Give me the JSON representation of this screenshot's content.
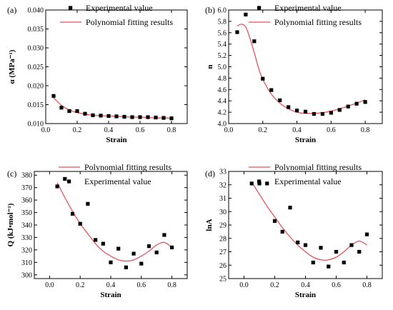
{
  "chart_data": [
    {
      "type": "scatter",
      "panel_label": "(a)",
      "xlabel": "Strain",
      "ylabel": "α (MPa⁻¹)",
      "xlim": [
        0.0,
        0.9
      ],
      "ylim": [
        0.01,
        0.04
      ],
      "xticks": [
        0.0,
        0.2,
        0.4,
        0.6,
        0.8
      ],
      "yticks": [
        0.01,
        0.015,
        0.02,
        0.025,
        0.03,
        0.035,
        0.04
      ],
      "xtick_labels": [
        "0.0",
        "0.2",
        "0.4",
        "0.6",
        "0.8"
      ],
      "ytick_labels": [
        "0.010",
        "0.015",
        "0.020",
        "0.025",
        "0.030",
        "0.035",
        "0.040"
      ],
      "legend": {
        "order": [
          "points",
          "fit"
        ],
        "entries": {
          "points": "Experimental value",
          "fit": "Polynomial fitting results"
        }
      },
      "points": {
        "x": [
          0.05,
          0.1,
          0.15,
          0.2,
          0.25,
          0.3,
          0.35,
          0.4,
          0.45,
          0.5,
          0.55,
          0.6,
          0.65,
          0.7,
          0.75,
          0.8
        ],
        "y": [
          0.0173,
          0.0142,
          0.0133,
          0.0133,
          0.0126,
          0.0122,
          0.0121,
          0.012,
          0.0119,
          0.0118,
          0.0117,
          0.0117,
          0.0117,
          0.0116,
          0.0115,
          0.0114
        ]
      },
      "fit": {
        "x": [
          0.05,
          0.1,
          0.15,
          0.2,
          0.25,
          0.3,
          0.35,
          0.4,
          0.45,
          0.5,
          0.55,
          0.6,
          0.65,
          0.7,
          0.75,
          0.8
        ],
        "y": [
          0.0168,
          0.0148,
          0.0136,
          0.0129,
          0.0125,
          0.0122,
          0.0121,
          0.012,
          0.0119,
          0.0118,
          0.0117,
          0.0117,
          0.0116,
          0.0115,
          0.0115,
          0.0114
        ]
      }
    },
    {
      "type": "scatter",
      "panel_label": "(b)",
      "xlabel": "Strain",
      "ylabel": "n",
      "xlim": [
        0.0,
        0.9
      ],
      "ylim": [
        4.0,
        6.0
      ],
      "xticks": [
        0.0,
        0.2,
        0.4,
        0.6,
        0.8
      ],
      "yticks": [
        4.0,
        4.2,
        4.4,
        4.6,
        4.8,
        5.0,
        5.2,
        5.4,
        5.6,
        5.8,
        6.0
      ],
      "xtick_labels": [
        "0.0",
        "0.2",
        "0.4",
        "0.6",
        "0.8"
      ],
      "ytick_labels": [
        "4.0",
        "4.2",
        "4.4",
        "4.6",
        "4.8",
        "5.0",
        "5.2",
        "5.4",
        "5.6",
        "5.8",
        "6.0"
      ],
      "legend": {
        "order": [
          "points",
          "fit"
        ],
        "entries": {
          "points": "Experimental value",
          "fit": "Polynomial fitting results"
        }
      },
      "points": {
        "x": [
          0.05,
          0.1,
          0.15,
          0.2,
          0.25,
          0.3,
          0.35,
          0.4,
          0.45,
          0.5,
          0.55,
          0.6,
          0.65,
          0.7,
          0.75,
          0.8
        ],
        "y": [
          5.61,
          5.92,
          5.45,
          4.79,
          4.59,
          4.41,
          4.29,
          4.23,
          4.21,
          4.17,
          4.17,
          4.19,
          4.24,
          4.3,
          4.35,
          4.38
        ]
      },
      "fit": {
        "x": [
          0.05,
          0.075,
          0.1,
          0.125,
          0.15,
          0.175,
          0.2,
          0.25,
          0.3,
          0.35,
          0.4,
          0.45,
          0.5,
          0.55,
          0.6,
          0.65,
          0.7,
          0.75,
          0.8
        ],
        "y": [
          5.72,
          5.75,
          5.7,
          5.5,
          5.25,
          4.98,
          4.78,
          4.52,
          4.36,
          4.26,
          4.2,
          4.18,
          4.18,
          4.19,
          4.22,
          4.26,
          4.31,
          4.36,
          4.42
        ]
      }
    },
    {
      "type": "scatter",
      "panel_label": "(c)",
      "xlabel": "Strain",
      "ylabel": "Q (kJ•mol⁻¹)",
      "xlim": [
        -0.1,
        0.9
      ],
      "ylim": [
        297,
        383
      ],
      "xticks": [
        0.0,
        0.2,
        0.4,
        0.6,
        0.8
      ],
      "yticks": [
        300,
        310,
        320,
        330,
        340,
        350,
        360,
        370,
        380
      ],
      "xtick_labels": [
        "0.0",
        "0.2",
        "0.4",
        "0.6",
        "0.8"
      ],
      "ytick_labels": [
        "300",
        "310",
        "320",
        "330",
        "340",
        "350",
        "360",
        "370",
        "380"
      ],
      "legend": {
        "order": [
          "fit",
          "points"
        ],
        "entries": {
          "fit": "Polynomial fitting results",
          "points": "Experimental value"
        }
      },
      "points": {
        "x": [
          0.05,
          0.1,
          0.15,
          0.2,
          0.25,
          0.3,
          0.35,
          0.4,
          0.45,
          0.5,
          0.55,
          0.6,
          0.65,
          0.7,
          0.75,
          0.8
        ],
        "y": [
          371,
          377,
          349,
          341,
          357,
          328,
          325,
          310,
          321,
          306,
          317,
          309,
          323,
          318,
          332,
          322
        ]
      },
      "fit": {
        "x": [
          0.05,
          0.1,
          0.15,
          0.2,
          0.25,
          0.3,
          0.35,
          0.4,
          0.45,
          0.5,
          0.55,
          0.6,
          0.65,
          0.7,
          0.75,
          0.8
        ],
        "y": [
          374,
          362,
          351,
          341,
          333,
          325,
          319,
          315,
          312,
          311,
          312,
          315,
          319,
          324,
          326,
          322
        ]
      }
    },
    {
      "type": "scatter",
      "panel_label": "(d)",
      "xlabel": "Strain",
      "ylabel": "lnA",
      "xlim": [
        -0.1,
        0.9
      ],
      "ylim": [
        25,
        33
      ],
      "xticks": [
        0.0,
        0.2,
        0.4,
        0.6,
        0.8
      ],
      "yticks": [
        25,
        26,
        27,
        28,
        29,
        30,
        31,
        32,
        33
      ],
      "xtick_labels": [
        "0.0",
        "0.2",
        "0.4",
        "0.6",
        "0.8"
      ],
      "ytick_labels": [
        "25",
        "26",
        "27",
        "28",
        "29",
        "30",
        "31",
        "32",
        "33"
      ],
      "legend": {
        "order": [
          "fit",
          "points"
        ],
        "entries": {
          "fit": "Polynomial fitting results",
          "points": "Experimental value"
        }
      },
      "points": {
        "x": [
          0.05,
          0.1,
          0.15,
          0.2,
          0.25,
          0.3,
          0.35,
          0.4,
          0.45,
          0.5,
          0.55,
          0.6,
          0.65,
          0.7,
          0.75,
          0.8
        ],
        "y": [
          32.1,
          32.1,
          32.1,
          29.3,
          28.5,
          30.3,
          27.7,
          27.5,
          26.2,
          27.3,
          25.9,
          27.0,
          26.2,
          27.5,
          27.0,
          28.3
        ]
      },
      "fit": {
        "x": [
          0.05,
          0.1,
          0.15,
          0.2,
          0.25,
          0.3,
          0.35,
          0.4,
          0.45,
          0.5,
          0.55,
          0.6,
          0.65,
          0.7,
          0.75,
          0.8
        ],
        "y": [
          32.2,
          31.3,
          30.4,
          29.6,
          28.8,
          28.1,
          27.5,
          27.0,
          26.6,
          26.4,
          26.4,
          26.6,
          27.0,
          27.5,
          27.8,
          27.5
        ]
      }
    }
  ],
  "colors": {
    "fit_line": "#e8525a",
    "points": "#000000",
    "axes": "#000000"
  }
}
